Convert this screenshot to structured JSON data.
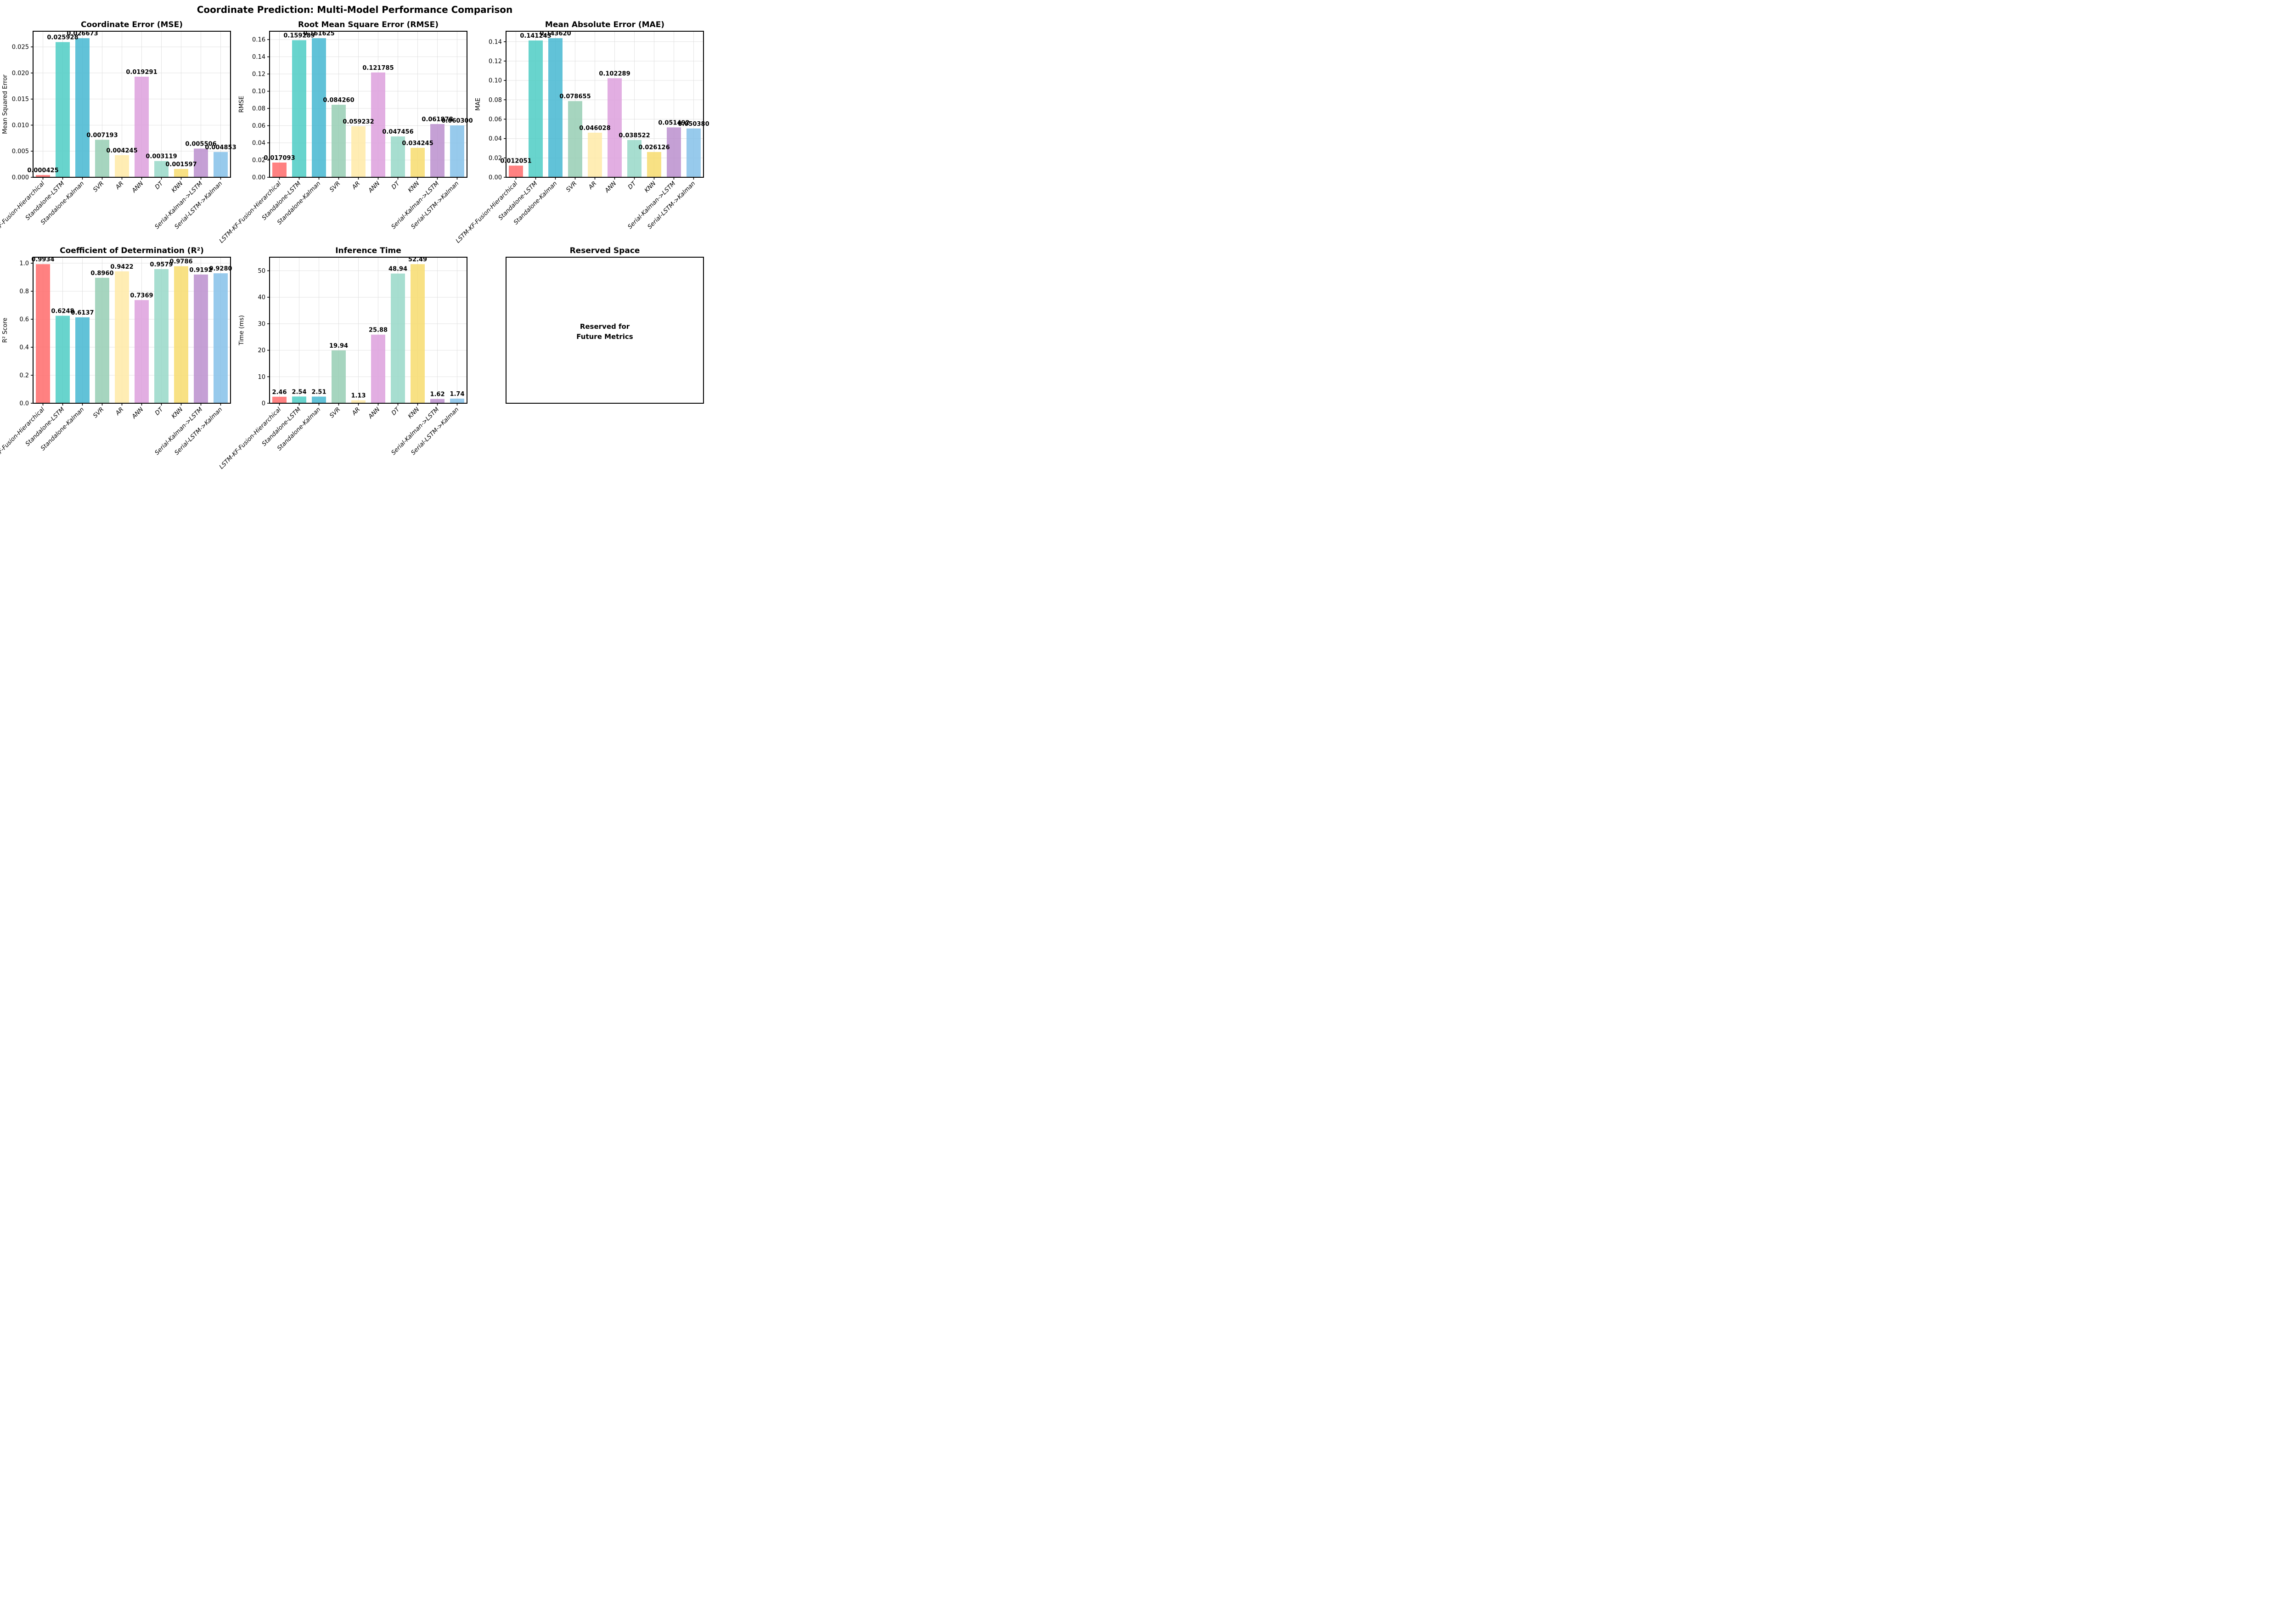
{
  "figure": {
    "title": "Coordinate Prediction: Multi-Model Performance Comparison"
  },
  "bar_colors": [
    "#FF6B6B",
    "#4ECDC4",
    "#45B7D1",
    "#96CEB4",
    "#FFEAA7",
    "#DDA0DD",
    "#98D8C8",
    "#F7DC6F",
    "#BB8FCE",
    "#85C1E9"
  ],
  "grid_color": "#dddddd",
  "chart_data": [
    {
      "type": "bar",
      "title": "Coordinate Error (MSE)",
      "ylabel": "Mean Squared Error",
      "categories": [
        "LSTM-KF-Fusion-Hierarchical",
        "Standalone-LSTM",
        "Standalone-Kalman",
        "SVR",
        "AR",
        "ANN",
        "DT",
        "KNN",
        "Serial-Kalman->LSTM",
        "Serial-LSTM->Kalman"
      ],
      "values": [
        0.000425,
        0.025928,
        0.026673,
        0.007193,
        0.004245,
        0.019291,
        0.003119,
        0.001597,
        0.005506,
        0.004853
      ],
      "value_labels": [
        "0.000425",
        "0.025928",
        "0.026673",
        "0.007193",
        "0.004245",
        "0.019291",
        "0.003119",
        "0.001597",
        "0.005506",
        "0.004853"
      ],
      "ylim": [
        0,
        0.028007
      ],
      "yticks": [
        0,
        0.005,
        0.01,
        0.015,
        0.02,
        0.025
      ],
      "ytick_decimals": 3,
      "grid": true,
      "legend": false
    },
    {
      "type": "bar",
      "title": "Root Mean Square Error (RMSE)",
      "ylabel": "RMSE",
      "categories": [
        "LSTM-KF-Fusion-Hierarchical",
        "Standalone-LSTM",
        "Standalone-Kalman",
        "SVR",
        "AR",
        "ANN",
        "DT",
        "KNN",
        "Serial-Kalman->LSTM",
        "Serial-LSTM->Kalman"
      ],
      "values": [
        0.017093,
        0.159289,
        0.161625,
        0.08426,
        0.059232,
        0.121785,
        0.047456,
        0.034245,
        0.061878,
        0.0603
      ],
      "value_labels": [
        "0.017093",
        "0.159289",
        "0.161625",
        "0.084260",
        "0.059232",
        "0.121785",
        "0.047456",
        "0.034245",
        "0.061878",
        "0.060300"
      ],
      "ylim": [
        0,
        0.169706
      ],
      "yticks": [
        0,
        0.02,
        0.04,
        0.06,
        0.08,
        0.1,
        0.12,
        0.14,
        0.16
      ],
      "ytick_decimals": 2,
      "grid": true,
      "legend": false
    },
    {
      "type": "bar",
      "title": "Mean Absolute Error (MAE)",
      "ylabel": "MAE",
      "categories": [
        "LSTM-KF-Fusion-Hierarchical",
        "Standalone-LSTM",
        "Standalone-Kalman",
        "SVR",
        "AR",
        "ANN",
        "DT",
        "KNN",
        "Serial-Kalman->LSTM",
        "Serial-LSTM->Kalman"
      ],
      "values": [
        0.012051,
        0.141243,
        0.14362,
        0.078655,
        0.046028,
        0.102289,
        0.038522,
        0.026126,
        0.051492,
        0.05038
      ],
      "value_labels": [
        "0.012051",
        "0.141243",
        "0.143620",
        "0.078655",
        "0.046028",
        "0.102289",
        "0.038522",
        "0.026126",
        "0.051492",
        "0.050380"
      ],
      "ylim": [
        0,
        0.150801
      ],
      "yticks": [
        0,
        0.02,
        0.04,
        0.06,
        0.08,
        0.1,
        0.12,
        0.14
      ],
      "ytick_decimals": 2,
      "grid": true,
      "legend": false
    },
    {
      "type": "bar",
      "title": "Coefficient of Determination (R²)",
      "ylabel": "R² Score",
      "categories": [
        "LSTM-KF-Fusion-Hierarchical",
        "Standalone-LSTM",
        "Standalone-Kalman",
        "SVR",
        "AR",
        "ANN",
        "DT",
        "KNN",
        "Serial-Kalman->LSTM",
        "Serial-LSTM->Kalman"
      ],
      "values": [
        0.9934,
        0.6248,
        0.6137,
        0.896,
        0.9422,
        0.7369,
        0.9579,
        0.9786,
        0.9192,
        0.928
      ],
      "value_labels": [
        "0.9934",
        "0.6248",
        "0.6137",
        "0.8960",
        "0.9422",
        "0.7369",
        "0.9579",
        "0.9786",
        "0.9192",
        "0.9280"
      ],
      "ylim": [
        0,
        1.04307
      ],
      "yticks": [
        0,
        0.2,
        0.4,
        0.6,
        0.8,
        1.0
      ],
      "ytick_decimals": 1,
      "grid": true,
      "legend": false
    },
    {
      "type": "bar",
      "title": "Inference Time",
      "ylabel": "Time (ms)",
      "categories": [
        "LSTM-KF-Fusion-Hierarchical",
        "Standalone-LSTM",
        "Standalone-Kalman",
        "SVR",
        "AR",
        "ANN",
        "DT",
        "KNN",
        "Serial-Kalman->LSTM",
        "Serial-LSTM->Kalman"
      ],
      "values": [
        2.46,
        2.54,
        2.51,
        19.94,
        1.13,
        25.88,
        48.94,
        52.49,
        1.62,
        1.74
      ],
      "value_labels": [
        "2.46",
        "2.54",
        "2.51",
        "19.94",
        "1.13",
        "25.88",
        "48.94",
        "52.49",
        "1.62",
        "1.74"
      ],
      "ylim": [
        0,
        55.1145
      ],
      "yticks": [
        0,
        10,
        20,
        30,
        40,
        50
      ],
      "ytick_decimals": 0,
      "grid": true,
      "legend": false
    },
    {
      "type": "text-panel",
      "title": "Reserved Space",
      "text_lines": [
        "Reserved for",
        "Future Metrics"
      ]
    }
  ]
}
